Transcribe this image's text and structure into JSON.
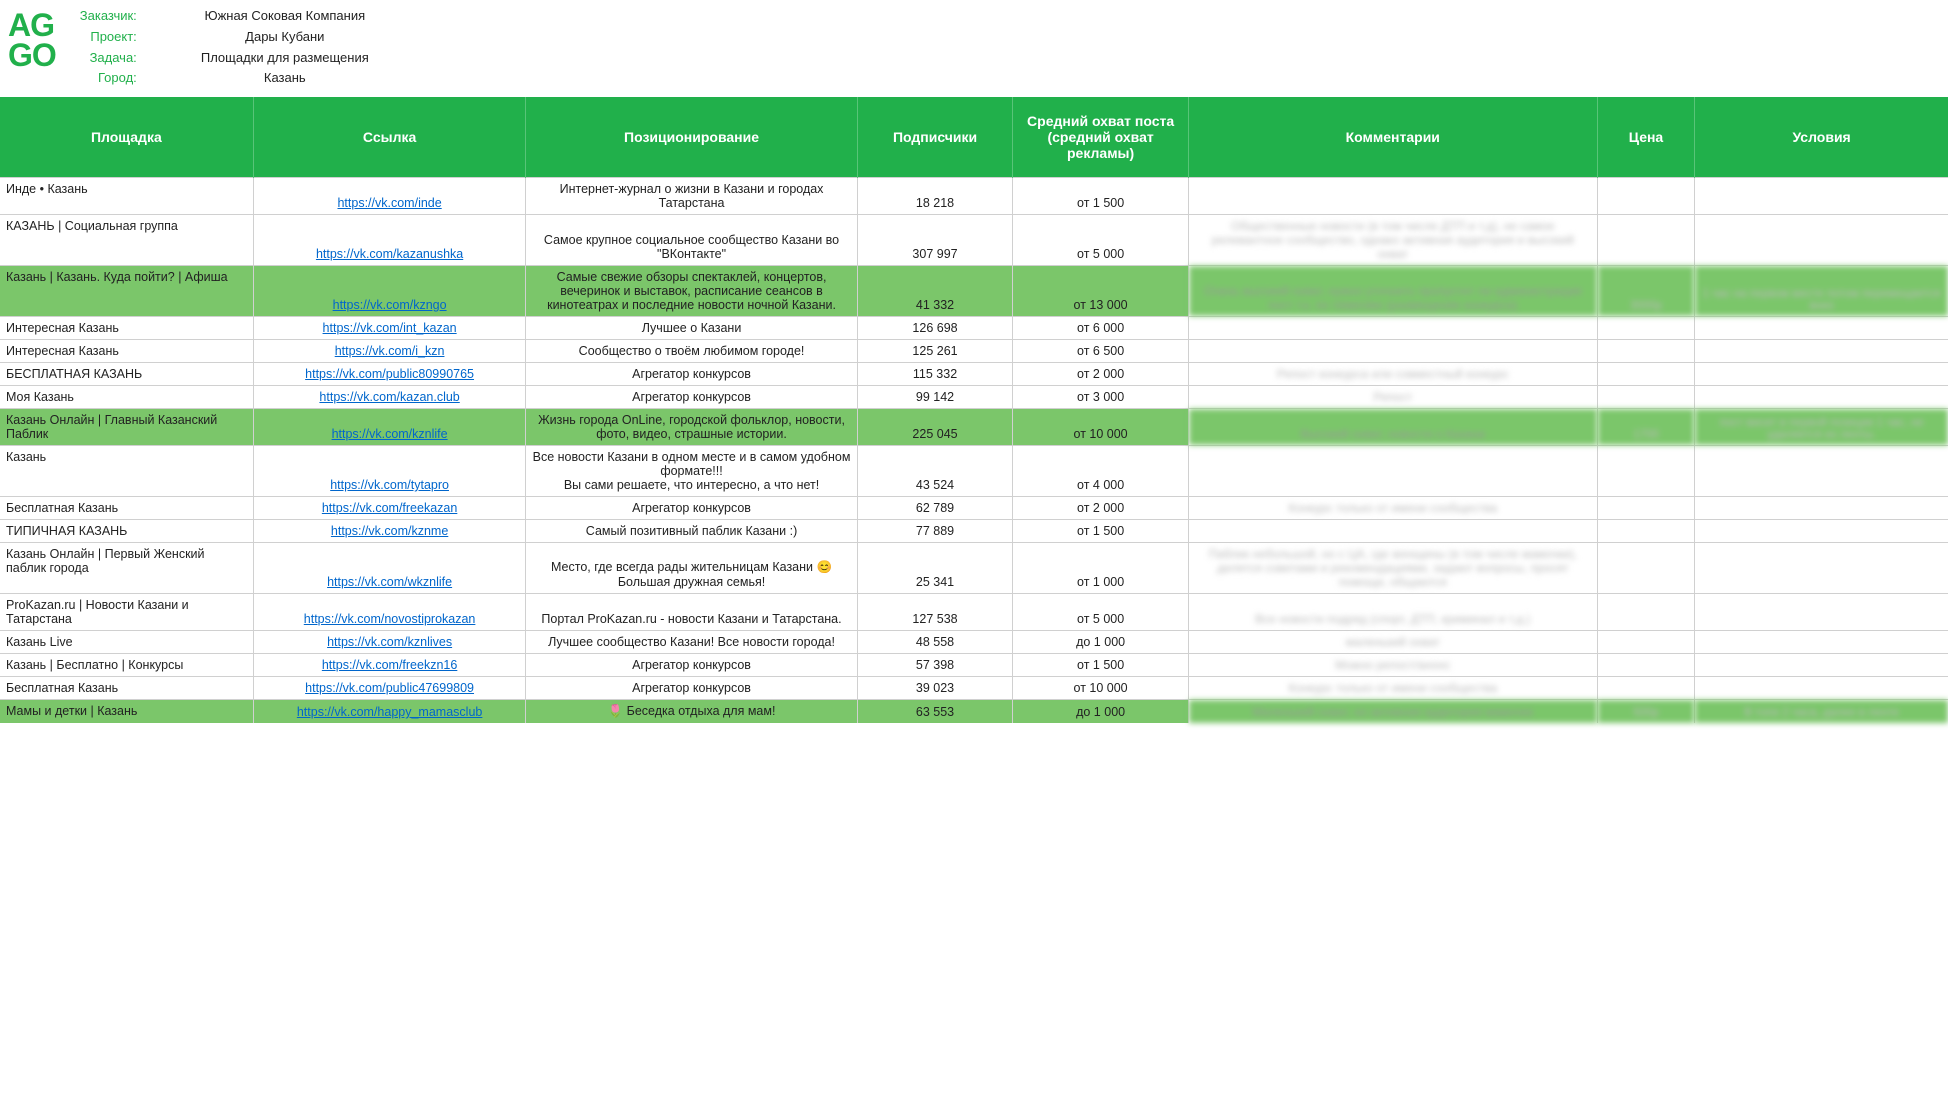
{
  "logo": {
    "line1": "AG",
    "line2": "GO",
    "color": "#21b04b"
  },
  "colors": {
    "header_bg": "#21b04b",
    "header_text": "#ffffff",
    "highlight_bg": "#7bc66a",
    "link": "#0066cc",
    "border": "#d0d0d0"
  },
  "meta": {
    "labels": {
      "client": "Заказчик:",
      "project": "Проект:",
      "task": "Задача:",
      "city": "Город:"
    },
    "values": {
      "client": "Южная Соковая Компания",
      "project": "Дары Кубани",
      "task": "Площадки для размещения",
      "city": "Казань"
    }
  },
  "columns": {
    "platform": "Площадка",
    "link": "Ссылка",
    "position": "Позиционирование",
    "subs": "Подписчики",
    "reach": "Средний охват поста (средний охват рекламы)",
    "comments": "Комментарии",
    "price": "Цена",
    "conditions": "Условия"
  },
  "rows": [
    {
      "platform": "Инде • Казань",
      "link": "https://vk.com/inde",
      "position": "Интернет-журнал о жизни в Казани и городах Татарстана",
      "subs": "18 218",
      "reach": "от 1 500",
      "comments": "",
      "price": "",
      "conditions": "",
      "highlight": false
    },
    {
      "platform": "КАЗАНЬ | Социальная группа",
      "link": "https://vk.com/kazanushka",
      "position": "Самое крупное социальное сообщество Казани во \"ВКонтакте\"",
      "subs": "307 997",
      "reach": "от 5 000",
      "comments": "Общественные новости (в том числе ДТП и т.д), не самое релевантное сообщество, однако активная аудитория и высокий охват",
      "price": "",
      "conditions": "",
      "highlight": false
    },
    {
      "platform": "Казань | Казань. Куда пойти? | Афиша",
      "link": "https://vk.com/kzngo",
      "position": "Самые свежие обзоры спектаклей, концертов, вечеринок и выставок, расписание сеансов в кинотеатрах и последние новости ночной Казани.",
      "subs": "41 332",
      "reach": "от 13 000",
      "comments": "Очень высокий охват, нужно уточнить пропустит ли администрация пост т.к. по тематике (размещение конкурса)",
      "price": "3000р",
      "conditions": "1 час на первом месте потом перемещается вниз",
      "highlight": true
    },
    {
      "platform": "Интересная Казань",
      "link": "https://vk.com/int_kazan",
      "position": "Лучшее о Казани",
      "subs": "126 698",
      "reach": "от 6 000",
      "comments": "",
      "price": "",
      "conditions": "",
      "highlight": false
    },
    {
      "platform": "Интересная Казань",
      "link": "https://vk.com/i_kzn",
      "position": "Сообщество о твоём любимом городе!",
      "subs": "125 261",
      "reach": "от 6 500",
      "comments": "",
      "price": "",
      "conditions": "",
      "highlight": false
    },
    {
      "platform": "БЕСПЛАТНАЯ КАЗАНЬ",
      "link": "https://vk.com/public80990765",
      "position": "Агрегатор конкурсов",
      "subs": "115 332",
      "reach": "от 2 000",
      "comments": "Репост конкурса или совместный конкурс",
      "price": "",
      "conditions": "",
      "highlight": false
    },
    {
      "platform": "Моя Казань",
      "link": "https://vk.com/kazan.club",
      "position": "Агрегатор конкурсов",
      "subs": "99 142",
      "reach": "от 3 000",
      "comments": "Репост",
      "price": "",
      "conditions": "",
      "highlight": false
    },
    {
      "platform": "Казань Онлайн | Главный Казанский Паблик",
      "link": "https://vk.com/kznlife",
      "position": "Жизнь города OnLine, городской фольклор, новости, фото, видео, страшные истории.",
      "subs": "225 045",
      "reach": "от 10 000",
      "comments": "Высокий охват, новости о Казани",
      "price": "1700",
      "conditions": "пост висит в первой позиции 1 час, не удаляется из ленты.",
      "highlight": true
    },
    {
      "platform": "Казань",
      "link": "https://vk.com/tytapro",
      "position": "Все новости Казани в одном месте и в самом удобном формате!!!\nВы сами решаете, что интересно, а что нет!",
      "subs": "43 524",
      "reach": "от 4 000",
      "comments": "",
      "price": "",
      "conditions": "",
      "highlight": false
    },
    {
      "platform": "Бесплатная Казань",
      "link": "https://vk.com/freekazan",
      "position": "Агрегатор конкурсов",
      "subs": "62 789",
      "reach": "от 2 000",
      "comments": "Конкурс только от имени сообщества",
      "price": "",
      "conditions": "",
      "highlight": false
    },
    {
      "platform": "ТИПИЧНАЯ КАЗАНЬ",
      "link": "https://vk.com/kznme",
      "position": "Самый позитивный паблик Казани :)",
      "subs": "77 889",
      "reach": "от 1 500",
      "comments": "",
      "price": "",
      "conditions": "",
      "highlight": false
    },
    {
      "platform": "Казань Онлайн | Первый Женский паблик города",
      "link": "https://vk.com/wkznlife",
      "position": "Место, где всегда рады жительницам Казани 😊 Большая дружная семья!",
      "subs": "25 341",
      "reach": "от 1 000",
      "comments": "Паблик небольшой, но с ЦА, где женщины (в том числе мамочки), делятся советами и рекомендациями, задают вопросы, просят помощи, общаются",
      "price": "",
      "conditions": "",
      "highlight": false
    },
    {
      "platform": "ProKazan.ru | Новости Казани и Татарстана",
      "link": "https://vk.com/novostiprokazan",
      "position": "Портал ProKazan.ru - новости Казани и Татарстана.",
      "subs": "127 538",
      "reach": "от 5 000",
      "comments": "Все новости подряд (спорт, ДТП, криминал и т.д.)",
      "price": "",
      "conditions": "",
      "highlight": false
    },
    {
      "platform": "Казань Live",
      "link": "https://vk.com/kznlives",
      "position": "Лучшее сообщество Казани! Все новости города!",
      "subs": "48 558",
      "reach": "до 1 000",
      "comments": "маленький охват",
      "price": "",
      "conditions": "",
      "highlight": false
    },
    {
      "platform": "Казань | Бесплатно | Конкурсы",
      "link": "https://vk.com/freekzn16",
      "position": "Агрегатор конкурсов",
      "subs": "57 398",
      "reach": "от 1 500",
      "comments": "Можно репост/анонс",
      "price": "",
      "conditions": "",
      "highlight": false
    },
    {
      "platform": "Бесплатная Казань",
      "link": "https://vk.com/public47699809",
      "position": "Агрегатор конкурсов",
      "subs": "39 023",
      "reach": "от 10 000",
      "comments": "Конкурс только от имени сообщества",
      "price": "",
      "conditions": "",
      "highlight": false
    },
    {
      "platform": "Мамы и детки | Казань",
      "link": "https://vk.com/happy_mamasclub ",
      "position": "🌷 Беседка отдыха для мам!",
      "subs": "63 553",
      "reach": "до 1 000",
      "comments": "Маленький охват, но активная аудитория мамочек",
      "price": "500р",
      "conditions": "В топе 2 часа, далее в ленте",
      "highlight": true
    }
  ]
}
